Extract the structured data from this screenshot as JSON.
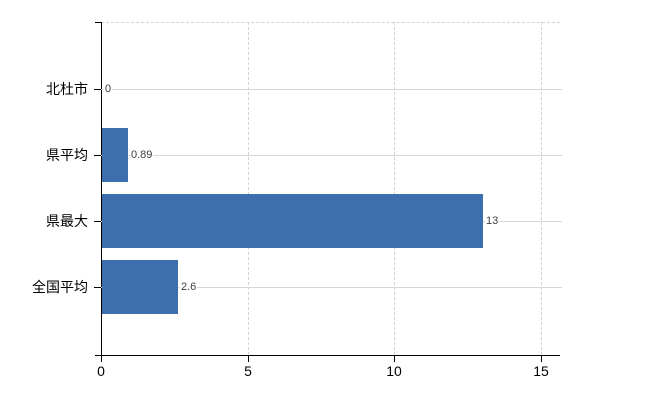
{
  "chart_data": {
    "type": "bar",
    "orientation": "horizontal",
    "title": "",
    "xlabel": "",
    "ylabel": "",
    "categories": [
      "北杜市",
      "県平均",
      "県最大",
      "全国平均"
    ],
    "values": [
      0,
      0.89,
      13,
      2.6
    ],
    "value_labels": [
      "0",
      "0.89",
      "13",
      "2.6"
    ],
    "x_ticks": [
      0,
      5,
      10,
      15
    ],
    "x_tick_labels": [
      "0",
      "5",
      "10",
      "15"
    ],
    "xlim": [
      0,
      15.65
    ],
    "grid": true,
    "legend": false,
    "colors": {
      "bar": "#3d6eae",
      "axis": "#000000",
      "grid_horizontal": "#d3d8d0",
      "grid_vertical": "#d5cfd6",
      "value_label": "#3f3f3f",
      "category_label": "#000000"
    }
  }
}
